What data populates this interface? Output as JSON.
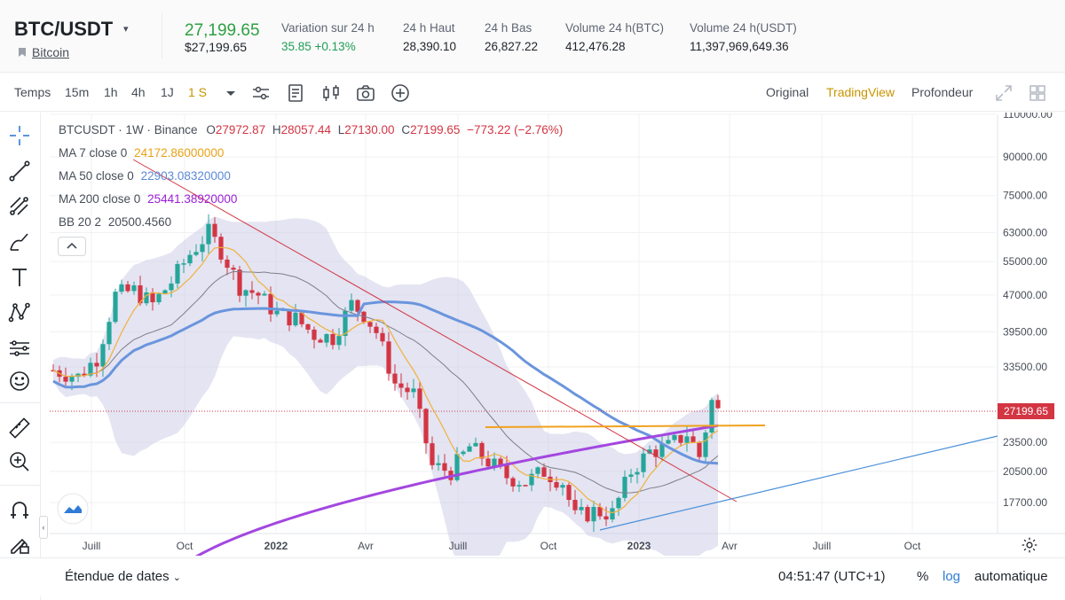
{
  "header": {
    "pair": "BTC/USDT",
    "pair_caret": "▾",
    "coin_name": "Bitcoin",
    "last_price": "27,199.65",
    "last_price_usd": "$27,199.65",
    "stats": [
      {
        "label": "Variation sur 24 h",
        "value": "35.85 +0.13%"
      },
      {
        "label": "24 h Haut",
        "value": "28,390.10"
      },
      {
        "label": "24 h Bas",
        "value": "26,827.22"
      },
      {
        "label": "Volume 24 h(BTC)",
        "value": "412,476.28"
      },
      {
        "label": "Volume 24 h(USDT)",
        "value": "11,397,969,649.36"
      }
    ]
  },
  "toolbar": {
    "time_label": "Temps",
    "intervals": [
      "15m",
      "1h",
      "4h",
      "1J",
      "1 S"
    ],
    "active_interval": "1 S",
    "views": [
      "Original",
      "TradingView",
      "Profondeur"
    ],
    "active_view": "TradingView"
  },
  "legend": {
    "symbol": "BTCUSDT · 1W · Binance",
    "o_label": "O",
    "o": "27972.87",
    "h_label": "H",
    "h": "28057.44",
    "l_label": "L",
    "l": "27130.00",
    "c_label": "C",
    "c": "27199.65",
    "change": "−773.22 (−2.76%)",
    "ma7_label": "MA 7 close 0",
    "ma7": "24172.86000000",
    "ma50_label": "MA 50 close 0",
    "ma50": "22903.08320000",
    "ma200_label": "MA 200 close 0",
    "ma200": "25441.38920000",
    "bb_label": "BB 20 2",
    "bb": "20500.4560"
  },
  "chart_data": {
    "type": "candlestick",
    "y_scale": "log",
    "y_ticks": [
      "110000.00",
      "90000.00",
      "75000.00",
      "63000.00",
      "55000.00",
      "47000.00",
      "39500.00",
      "33500.00",
      "23500.00",
      "20500.00",
      "17700.00"
    ],
    "x_ticks": [
      "Juill",
      "Oct",
      "2022",
      "Avr",
      "Juill",
      "Oct",
      "2023",
      "Avr",
      "Juill",
      "Oct"
    ],
    "last_price_label": "27199.65",
    "colors": {
      "up": "#26a69a",
      "down": "#d33543",
      "ma7": "#f0b23c",
      "ma50": "#6a95dd",
      "ma200": "#a347e0",
      "bb": "#c9cae6"
    }
  },
  "bottombar": {
    "range_label": "Étendue de dates",
    "time": "04:51:47 (UTC+1)",
    "percent": "%",
    "log": "log",
    "auto": "automatique"
  }
}
